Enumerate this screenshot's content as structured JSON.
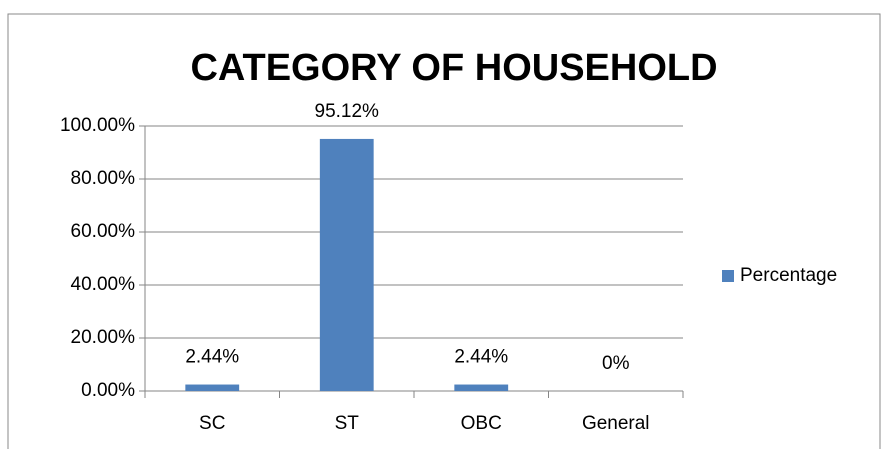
{
  "chart_data": {
    "type": "bar",
    "title": "CATEGORY OF HOUSEHOLD",
    "categories": [
      "SC",
      "ST",
      "OBC",
      "General"
    ],
    "series": [
      {
        "name": "Percentage",
        "color": "#4f81bd",
        "values": [
          2.44,
          95.12,
          2.44,
          0
        ],
        "value_labels": [
          "2.44%",
          "95.12%",
          "2.44%",
          "0%"
        ]
      }
    ],
    "ylim": [
      0,
      100
    ],
    "yticks": [
      {
        "value": 0,
        "label": "0.00%"
      },
      {
        "value": 20,
        "label": "20.00%"
      },
      {
        "value": 40,
        "label": "40.00%"
      },
      {
        "value": 60,
        "label": "60.00%"
      },
      {
        "value": 80,
        "label": "80.00%"
      },
      {
        "value": 100,
        "label": "100.00%"
      }
    ],
    "grid": true,
    "legend": "right"
  }
}
